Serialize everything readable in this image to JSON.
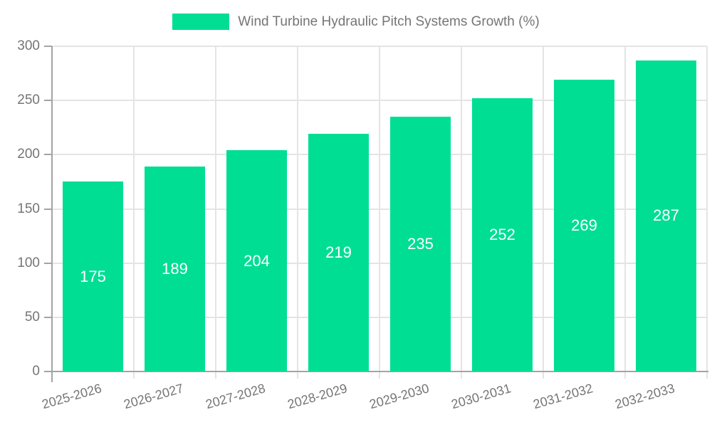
{
  "legend": {
    "label": "Wind Turbine Hydraulic Pitch Systems Growth (%)"
  },
  "chart_data": {
    "type": "bar",
    "title": "Wind Turbine Hydraulic Pitch Systems Growth (%)",
    "series_name": "Wind Turbine Hydraulic Pitch Systems Growth (%)",
    "categories": [
      "2025-2026",
      "2026-2027",
      "2027-2028",
      "2028-2029",
      "2029-2030",
      "2030-2031",
      "2031-2032",
      "2032-2033"
    ],
    "values": [
      175,
      189,
      204,
      219,
      235,
      252,
      269,
      287
    ],
    "value_labels": [
      "175",
      "189",
      "204",
      "219",
      "235",
      "252",
      "269",
      "287"
    ],
    "xlabel": "",
    "ylabel": "",
    "ylim": [
      0,
      300
    ],
    "yticks": [
      0,
      50,
      100,
      150,
      200,
      250,
      300
    ],
    "grid": true,
    "legend_position": "top-center",
    "x_tick_rotation_deg": -16,
    "colors": {
      "bar": "#00DE94",
      "value_label": "#ffffff",
      "grid": "#E4E4E4",
      "axis": "#A3A3A3",
      "tick_text": "#757575"
    }
  }
}
